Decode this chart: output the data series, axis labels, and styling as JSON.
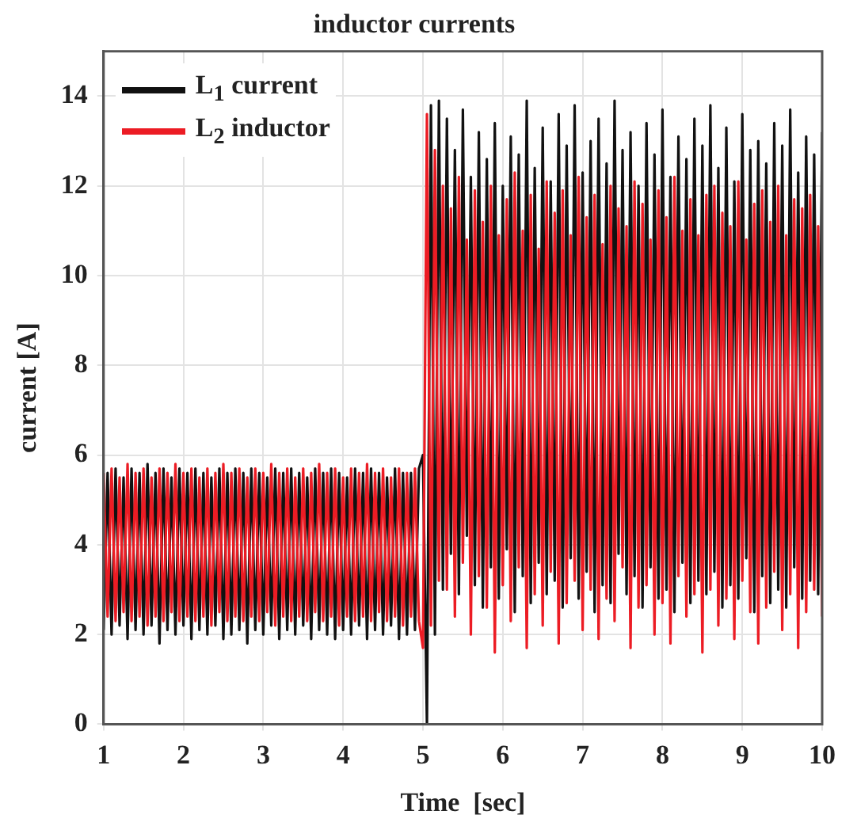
{
  "chart_data": {
    "type": "line",
    "title": "inductor currents",
    "xlabel": "Time  [sec]",
    "ylabel": "current [A]",
    "xlim": [
      1,
      10
    ],
    "ylim": [
      0,
      15
    ],
    "xticks": [
      1,
      2,
      3,
      4,
      5,
      6,
      7,
      8,
      9,
      10
    ],
    "yticks": [
      0,
      2,
      4,
      6,
      8,
      10,
      12,
      14
    ],
    "grid": true,
    "legend": "top left",
    "marker": "none",
    "line_style": "solid",
    "x": [
      1,
      1.05,
      1.1,
      1.15,
      1.2,
      1.25,
      1.3,
      1.35,
      1.4,
      1.45,
      1.5,
      1.55,
      1.6,
      1.65,
      1.7,
      1.75,
      1.8,
      1.85,
      1.9,
      1.95,
      2,
      2.05,
      2.1,
      2.15,
      2.2,
      2.25,
      2.3,
      2.35,
      2.4,
      2.45,
      2.5,
      2.55,
      2.6,
      2.65,
      2.7,
      2.75,
      2.8,
      2.85,
      2.9,
      2.95,
      3,
      3.05,
      3.1,
      3.15,
      3.2,
      3.25,
      3.3,
      3.35,
      3.4,
      3.45,
      3.5,
      3.55,
      3.6,
      3.65,
      3.7,
      3.75,
      3.8,
      3.85,
      3.9,
      3.95,
      4,
      4.05,
      4.1,
      4.15,
      4.2,
      4.25,
      4.3,
      4.35,
      4.4,
      4.45,
      4.5,
      4.55,
      4.6,
      4.65,
      4.7,
      4.75,
      4.8,
      4.85,
      4.9,
      4.95,
      5,
      5.05,
      5.1,
      5.15,
      5.2,
      5.25,
      5.3,
      5.35,
      5.4,
      5.45,
      5.5,
      5.55,
      5.6,
      5.65,
      5.7,
      5.75,
      5.8,
      5.85,
      5.9,
      5.95,
      6,
      6.05,
      6.1,
      6.15,
      6.2,
      6.25,
      6.3,
      6.35,
      6.4,
      6.45,
      6.5,
      6.55,
      6.6,
      6.65,
      6.7,
      6.75,
      6.8,
      6.85,
      6.9,
      6.95,
      7,
      7.05,
      7.1,
      7.15,
      7.2,
      7.25,
      7.3,
      7.35,
      7.4,
      7.45,
      7.5,
      7.55,
      7.6,
      7.65,
      7.7,
      7.75,
      7.8,
      7.85,
      7.9,
      7.95,
      8,
      8.05,
      8.1,
      8.15,
      8.2,
      8.25,
      8.3,
      8.35,
      8.4,
      8.45,
      8.5,
      8.55,
      8.6,
      8.65,
      8.7,
      8.75,
      8.8,
      8.85,
      8.9,
      8.95,
      9,
      9.05,
      9.1,
      9.15,
      9.2,
      9.25,
      9.3,
      9.35,
      9.4,
      9.45,
      9.5,
      9.55,
      9.6,
      9.65,
      9.7,
      9.75,
      9.8,
      9.85,
      9.9,
      9.95,
      10
    ],
    "series": [
      {
        "name": "L$_{1}$ current",
        "color": "#111111",
        "values": [
          2.1,
          5.6,
          2.0,
          5.7,
          2.2,
          5.5,
          1.9,
          5.7,
          2.1,
          5.6,
          2.0,
          5.8,
          2.2,
          5.6,
          1.8,
          5.7,
          2.1,
          5.5,
          2.0,
          5.7,
          2.2,
          5.6,
          1.9,
          5.7,
          2.1,
          5.6,
          2.0,
          5.5,
          2.2,
          5.7,
          1.9,
          5.6,
          2.0,
          5.7,
          2.1,
          5.6,
          1.8,
          5.7,
          2.1,
          5.6,
          2.0,
          5.5,
          2.2,
          5.7,
          1.9,
          5.6,
          2.1,
          5.7,
          2.0,
          5.6,
          2.2,
          5.5,
          1.9,
          5.7,
          2.1,
          5.6,
          2.0,
          5.7,
          1.9,
          5.6,
          2.1,
          5.5,
          2.0,
          5.7,
          2.2,
          5.6,
          1.9,
          5.7,
          2.1,
          5.6,
          2.0,
          5.5,
          2.2,
          5.7,
          1.9,
          5.6,
          2.0,
          5.6,
          2.1,
          5.7,
          6.0,
          0,
          13.8,
          2.0,
          13.9,
          3.0,
          13.5,
          3.8,
          12.8,
          2.9,
          13.7,
          4.2,
          12.2,
          3.1,
          13.2,
          2.6,
          12.6,
          3.5,
          13.4,
          2.8,
          12.0,
          3.9,
          13.1,
          2.5,
          12.7,
          3.3,
          13.9,
          2.7,
          12.4,
          3.6,
          13.3,
          2.9,
          12.1,
          3.2,
          13.6,
          2.6,
          12.9,
          3.7,
          13.8,
          2.8,
          12.3,
          3.4,
          13.0,
          2.5,
          13.5,
          3.1,
          12.5,
          2.7,
          13.9,
          3.8,
          12.8,
          2.9,
          13.2,
          3.3,
          12.0,
          2.6,
          13.4,
          3.5,
          12.7,
          2.8,
          13.7,
          3.0,
          12.2,
          2.5,
          13.1,
          3.6,
          12.6,
          2.7,
          13.5,
          3.2,
          12.9,
          2.9,
          13.8,
          3.4,
          12.4,
          2.6,
          13.3,
          3.1,
          12.1,
          2.8,
          13.6,
          3.7,
          12.8,
          2.5,
          13.0,
          3.3,
          12.5,
          2.7,
          13.4,
          3.0,
          12.9,
          2.6,
          13.7,
          3.5,
          12.3,
          2.8,
          13.1,
          3.2,
          12.7,
          2.9,
          13.2
        ]
      },
      {
        "name": "L$_{2}$ inductor",
        "color": "#ec1c24",
        "values": [
          5.6,
          2.4,
          5.7,
          2.3,
          5.5,
          2.5,
          5.8,
          2.3,
          5.6,
          2.4,
          5.7,
          2.2,
          5.5,
          2.4,
          5.7,
          2.3,
          5.6,
          2.5,
          5.8,
          2.3,
          5.6,
          2.4,
          5.7,
          2.3,
          5.5,
          2.4,
          5.7,
          2.2,
          5.6,
          2.5,
          5.8,
          2.3,
          5.6,
          2.4,
          5.7,
          2.3,
          5.5,
          2.4,
          5.7,
          2.3,
          5.6,
          2.5,
          5.8,
          2.2,
          5.6,
          2.4,
          5.7,
          2.3,
          5.5,
          2.4,
          5.7,
          2.3,
          5.6,
          2.5,
          5.8,
          2.3,
          5.6,
          2.4,
          5.7,
          2.2,
          5.5,
          2.4,
          5.7,
          2.3,
          5.6,
          2.4,
          5.8,
          2.3,
          5.6,
          2.5,
          5.7,
          2.3,
          5.5,
          2.4,
          5.7,
          2.2,
          5.6,
          2.4,
          5.7,
          2.3,
          1.7,
          13.6,
          2.2,
          12.8,
          3.2,
          12.0,
          3.0,
          11.5,
          2.4,
          12.2,
          3.6,
          10.8,
          2.0,
          11.9,
          3.3,
          11.2,
          2.6,
          12.0,
          1.6,
          10.9,
          3.1,
          11.7,
          2.3,
          12.3,
          3.5,
          11.0,
          1.7,
          11.8,
          2.9,
          10.6,
          2.2,
          12.1,
          3.4,
          11.4,
          1.8,
          11.9,
          2.7,
          10.9,
          3.2,
          12.2,
          2.1,
          11.3,
          3.0,
          11.8,
          1.9,
          10.7,
          2.8,
          12.0,
          2.3,
          11.5,
          3.5,
          11.1,
          1.7,
          12.1,
          2.6,
          11.6,
          3.1,
          10.8,
          2.0,
          11.9,
          2.7,
          11.3,
          1.8,
          12.2,
          3.3,
          11.0,
          2.4,
          11.7,
          2.9,
          10.9,
          1.6,
          11.8,
          3.0,
          12.0,
          2.2,
          11.4,
          2.8,
          11.1,
          1.9,
          12.1,
          3.2,
          10.8,
          2.5,
          11.6,
          1.8,
          11.9,
          2.6,
          11.2,
          3.4,
          12.0,
          2.1,
          10.9,
          2.9,
          11.7,
          1.7,
          11.5,
          2.5,
          11.8,
          3.0,
          11.1,
          2.4
        ]
      }
    ]
  }
}
